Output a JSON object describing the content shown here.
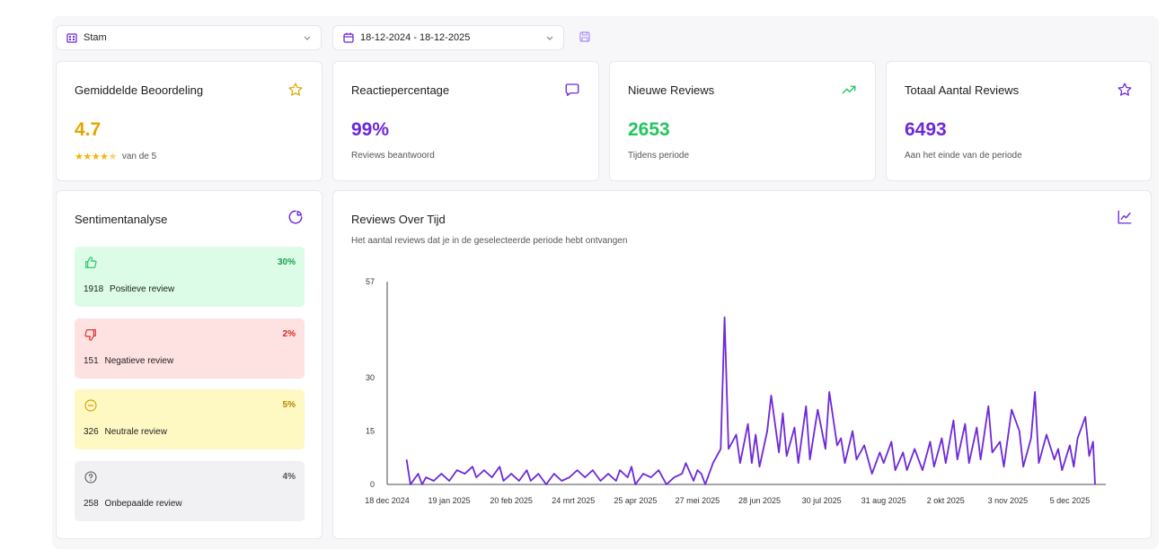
{
  "toolbar": {
    "location_value": "Stam",
    "date_range_value": "18-12-2024 - 18-12-2025"
  },
  "colors": {
    "accent": "#6d28d9",
    "gold": "#e5a500",
    "green": "#22c55e",
    "red": "#dc2626",
    "positive_bg": "#dcfce7",
    "negative_bg": "#fee2e2",
    "neutral_bg": "#fef9c3",
    "unknown_bg": "#f1f1f4"
  },
  "stats": {
    "average": {
      "title": "Gemiddelde Beoordeling",
      "value": "4.7",
      "stars": "★★★★",
      "half_star": "★",
      "sub": "van de 5",
      "icon": "star-outline-icon"
    },
    "response": {
      "title": "Reactiepercentage",
      "value": "99%",
      "sub": "Reviews beantwoord",
      "icon": "chat-bubble-icon"
    },
    "new": {
      "title": "Nieuwe Reviews",
      "value": "2653",
      "sub": "Tijdens periode",
      "icon": "trending-up-icon"
    },
    "total": {
      "title": "Totaal Aantal Reviews",
      "value": "6493",
      "sub": "Aan het einde van de periode",
      "icon": "star-outline-icon"
    }
  },
  "sentiment": {
    "title": "Sentimentanalyse",
    "items": [
      {
        "key": "positive",
        "count": "1918",
        "label": "Positieve review",
        "pct": "30%",
        "icon": "thumbs-up-icon"
      },
      {
        "key": "negative",
        "count": "151",
        "label": "Negatieve review",
        "pct": "2%",
        "icon": "thumbs-down-icon"
      },
      {
        "key": "neutral",
        "count": "326",
        "label": "Neutrale review",
        "pct": "5%",
        "icon": "minus-circle-icon"
      },
      {
        "key": "unknown",
        "count": "258",
        "label": "Onbepaalde review",
        "pct": "4%",
        "icon": "question-circle-icon"
      }
    ]
  },
  "chart_data": {
    "type": "line",
    "title": "Reviews Over Tijd",
    "subtitle": "Het aantal reviews dat je in de geselecteerde periode hebt ontvangen",
    "xlabel": "",
    "ylabel": "",
    "yticks": [
      0,
      15,
      30,
      57
    ],
    "ylim": [
      0,
      57
    ],
    "xlim": [
      0,
      365
    ],
    "xticks": [
      {
        "day": 0,
        "label": "18 dec 2024"
      },
      {
        "day": 32,
        "label": "19 jan 2025"
      },
      {
        "day": 64,
        "label": "20 feb 2025"
      },
      {
        "day": 96,
        "label": "24 mrt 2025"
      },
      {
        "day": 128,
        "label": "25 apr 2025"
      },
      {
        "day": 160,
        "label": "27 mei 2025"
      },
      {
        "day": 192,
        "label": "28 jun 2025"
      },
      {
        "day": 224,
        "label": "30 jul 2025"
      },
      {
        "day": 256,
        "label": "31 aug 2025"
      },
      {
        "day": 288,
        "label": "2 okt 2025"
      },
      {
        "day": 320,
        "label": "3 nov 2025"
      },
      {
        "day": 352,
        "label": "5 dec 2025"
      }
    ],
    "series": [
      {
        "name": "Reviews",
        "color": "#6d28d9",
        "points": [
          [
            10,
            7
          ],
          [
            12,
            0
          ],
          [
            16,
            3
          ],
          [
            18,
            0
          ],
          [
            20,
            2
          ],
          [
            24,
            1
          ],
          [
            28,
            3
          ],
          [
            32,
            1
          ],
          [
            36,
            4
          ],
          [
            40,
            3
          ],
          [
            44,
            5
          ],
          [
            46,
            2
          ],
          [
            50,
            4
          ],
          [
            54,
            2
          ],
          [
            58,
            5
          ],
          [
            60,
            1
          ],
          [
            64,
            3
          ],
          [
            68,
            1
          ],
          [
            72,
            4
          ],
          [
            74,
            1
          ],
          [
            78,
            3
          ],
          [
            82,
            0
          ],
          [
            86,
            3
          ],
          [
            90,
            1
          ],
          [
            94,
            2
          ],
          [
            98,
            4
          ],
          [
            102,
            2
          ],
          [
            106,
            4
          ],
          [
            110,
            1
          ],
          [
            114,
            3
          ],
          [
            118,
            1
          ],
          [
            120,
            4
          ],
          [
            124,
            2
          ],
          [
            126,
            5
          ],
          [
            128,
            0
          ],
          [
            132,
            3
          ],
          [
            136,
            2
          ],
          [
            140,
            4
          ],
          [
            144,
            0
          ],
          [
            148,
            2
          ],
          [
            152,
            3
          ],
          [
            154,
            6
          ],
          [
            158,
            1
          ],
          [
            160,
            4
          ],
          [
            162,
            3
          ],
          [
            164,
            0
          ],
          [
            168,
            6
          ],
          [
            172,
            10
          ],
          [
            174,
            47
          ],
          [
            176,
            10
          ],
          [
            180,
            14
          ],
          [
            182,
            6
          ],
          [
            186,
            17
          ],
          [
            188,
            6
          ],
          [
            190,
            14
          ],
          [
            192,
            5
          ],
          [
            196,
            15
          ],
          [
            198,
            25
          ],
          [
            202,
            9
          ],
          [
            204,
            20
          ],
          [
            206,
            8
          ],
          [
            210,
            16
          ],
          [
            212,
            6
          ],
          [
            216,
            22
          ],
          [
            218,
            7
          ],
          [
            222,
            21
          ],
          [
            226,
            10
          ],
          [
            228,
            26
          ],
          [
            232,
            11
          ],
          [
            234,
            13
          ],
          [
            236,
            6
          ],
          [
            240,
            15
          ],
          [
            242,
            7
          ],
          [
            246,
            11
          ],
          [
            250,
            3
          ],
          [
            254,
            9
          ],
          [
            256,
            6
          ],
          [
            260,
            12
          ],
          [
            262,
            4
          ],
          [
            266,
            9
          ],
          [
            268,
            4
          ],
          [
            272,
            10
          ],
          [
            276,
            4
          ],
          [
            280,
            12
          ],
          [
            282,
            5
          ],
          [
            286,
            13
          ],
          [
            288,
            6
          ],
          [
            292,
            18
          ],
          [
            294,
            7
          ],
          [
            298,
            17
          ],
          [
            300,
            6
          ],
          [
            304,
            16
          ],
          [
            306,
            7
          ],
          [
            310,
            22
          ],
          [
            312,
            9
          ],
          [
            316,
            12
          ],
          [
            318,
            5
          ],
          [
            322,
            21
          ],
          [
            326,
            15
          ],
          [
            328,
            5
          ],
          [
            332,
            13
          ],
          [
            334,
            26
          ],
          [
            336,
            6
          ],
          [
            340,
            14
          ],
          [
            344,
            7
          ],
          [
            346,
            10
          ],
          [
            348,
            4
          ],
          [
            352,
            11
          ],
          [
            354,
            5
          ],
          [
            356,
            13
          ],
          [
            360,
            19
          ],
          [
            362,
            8
          ],
          [
            364,
            12
          ],
          [
            365,
            0
          ]
        ]
      }
    ]
  }
}
